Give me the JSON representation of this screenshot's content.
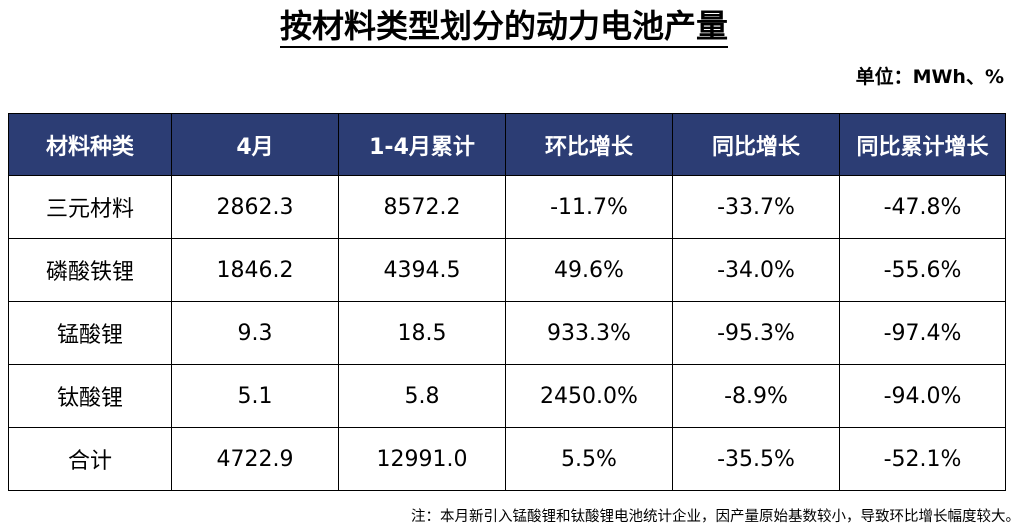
{
  "title": "按材料类型划分的动力电池产量",
  "unit": "单位：MWh、%",
  "table": {
    "columns": [
      "材料种类",
      "4月",
      "1-4月累计",
      "环比增长",
      "同比增长",
      "同比累计增长"
    ],
    "rows": [
      [
        "三元材料",
        "2862.3",
        "8572.2",
        "-11.7%",
        "-33.7%",
        "-47.8%"
      ],
      [
        "磷酸铁锂",
        "1846.2",
        "4394.5",
        "49.6%",
        "-34.0%",
        "-55.6%"
      ],
      [
        "锰酸锂",
        "9.3",
        "18.5",
        "933.3%",
        "-95.3%",
        "-97.4%"
      ],
      [
        "钛酸锂",
        "5.1",
        "5.8",
        "2450.0%",
        "-8.9%",
        "-94.0%"
      ],
      [
        "合计",
        "4722.9",
        "12991.0",
        "5.5%",
        "-35.5%",
        "-52.1%"
      ]
    ]
  },
  "colors": {
    "header_background": "#2c3d74",
    "header_text": "#ffffff"
  },
  "footnote": "注：本月新引入锰酸锂和钛酸锂电池统计企业，因产量原始基数较小，导致环比增长幅度较大。"
}
